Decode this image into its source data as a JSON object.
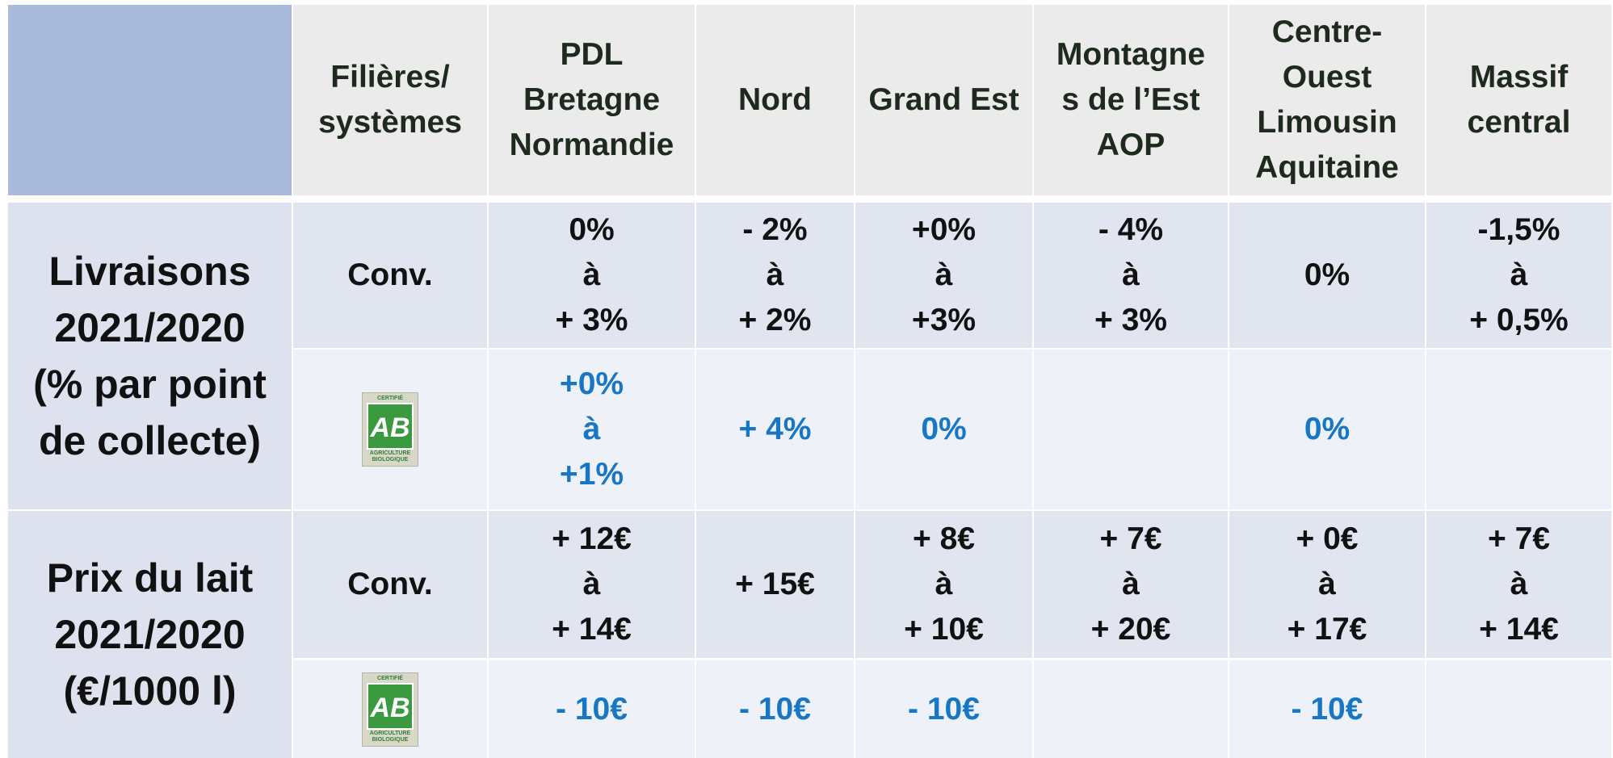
{
  "header": {
    "columns": [
      [
        "Filières/",
        "systèmes"
      ],
      [
        "PDL",
        "Bretagne",
        "Normandie"
      ],
      [
        "Nord"
      ],
      [
        "Grand Est"
      ],
      [
        "Montagne",
        "s de l’Est",
        "AOP"
      ],
      [
        "Centre-",
        "Ouest",
        "Limousin",
        "Aquitaine"
      ],
      [
        "Massif",
        "central"
      ]
    ]
  },
  "logo": {
    "top": "CERTIFIÉ",
    "mark": "AB",
    "bottom": [
      "AGRICULTURE",
      "BIOLOGIQUE"
    ]
  },
  "groups": [
    {
      "label": [
        "Livraisons",
        "2021/2020",
        "(% par point",
        "de collecte)"
      ],
      "rows": [
        {
          "system": "Conv.",
          "cells": [
            [
              "0%",
              "à",
              "+ 3%"
            ],
            [
              "- 2%",
              "à",
              "+ 2%"
            ],
            [
              "+0%",
              "à",
              "+3%"
            ],
            [
              "- 4%",
              "à",
              "+ 3%"
            ],
            [
              "0%"
            ],
            [
              "-1,5%",
              "à",
              "+ 0,5%"
            ]
          ]
        },
        {
          "cells": [
            [
              "+0%",
              "à",
              "+1%"
            ],
            [
              "+ 4%"
            ],
            [
              "0%"
            ],
            [],
            [
              "0%"
            ],
            []
          ]
        }
      ]
    },
    {
      "label": [
        "Prix du lait",
        "2021/2020",
        "(€/1000 l)"
      ],
      "rows": [
        {
          "system": "Conv.",
          "cells": [
            [
              "+ 12€",
              "à",
              "+ 14€"
            ],
            [
              "+ 15€"
            ],
            [
              "+ 8€",
              "à",
              "+ 10€"
            ],
            [
              "+ 7€",
              "à",
              "+ 20€"
            ],
            [
              "+ 0€",
              "à",
              "+ 17€"
            ],
            [
              "+ 7€",
              "à",
              "+ 14€"
            ]
          ]
        },
        {
          "cells": [
            [
              "- 10€"
            ],
            [
              "- 10€"
            ],
            [
              "- 10€"
            ],
            [],
            [
              "- 10€"
            ],
            []
          ]
        }
      ]
    }
  ]
}
